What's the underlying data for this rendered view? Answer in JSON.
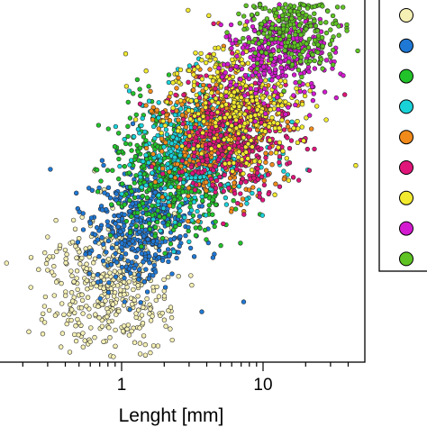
{
  "chart_data": {
    "type": "scatter",
    "title": "",
    "xlabel": "Lenght [mm]",
    "ylabel": "",
    "x_scale": "log",
    "xlim": [
      0.1,
      45
    ],
    "ylim": [
      0,
      1
    ],
    "x_tick_labels": [
      {
        "value": 1,
        "label": "1"
      },
      {
        "value": 10,
        "label": "10"
      }
    ],
    "grid": false,
    "legend_position": "right",
    "series": [
      {
        "color": "#f5f0b4",
        "n": 420,
        "x_center": 0.8,
        "x_spread": 0.24,
        "y_center": 0.12,
        "y_spread": 0.11
      },
      {
        "color": "#1f78d4",
        "n": 460,
        "x_center": 1.4,
        "x_spread": 0.2,
        "y_center": 0.33,
        "y_spread": 0.1
      },
      {
        "color": "#22c32a",
        "n": 480,
        "x_center": 2.3,
        "x_spread": 0.2,
        "y_center": 0.5,
        "y_spread": 0.1
      },
      {
        "color": "#19d2d8",
        "n": 480,
        "x_center": 3.6,
        "x_spread": 0.22,
        "y_center": 0.58,
        "y_spread": 0.1
      },
      {
        "color": "#f08a1a",
        "n": 430,
        "x_center": 5.0,
        "x_spread": 0.22,
        "y_center": 0.63,
        "y_spread": 0.1
      },
      {
        "color": "#e0157a",
        "n": 420,
        "x_center": 6.5,
        "x_spread": 0.22,
        "y_center": 0.62,
        "y_spread": 0.1
      },
      {
        "color": "#f2ea2e",
        "n": 360,
        "x_center": 7.0,
        "x_spread": 0.22,
        "y_center": 0.74,
        "y_spread": 0.1
      },
      {
        "color": "#d41ad0",
        "n": 330,
        "x_center": 13.0,
        "x_spread": 0.18,
        "y_center": 0.88,
        "y_spread": 0.07
      },
      {
        "color": "#5fc423",
        "n": 300,
        "x_center": 17.0,
        "x_spread": 0.18,
        "y_center": 0.98,
        "y_spread": 0.07
      }
    ]
  }
}
